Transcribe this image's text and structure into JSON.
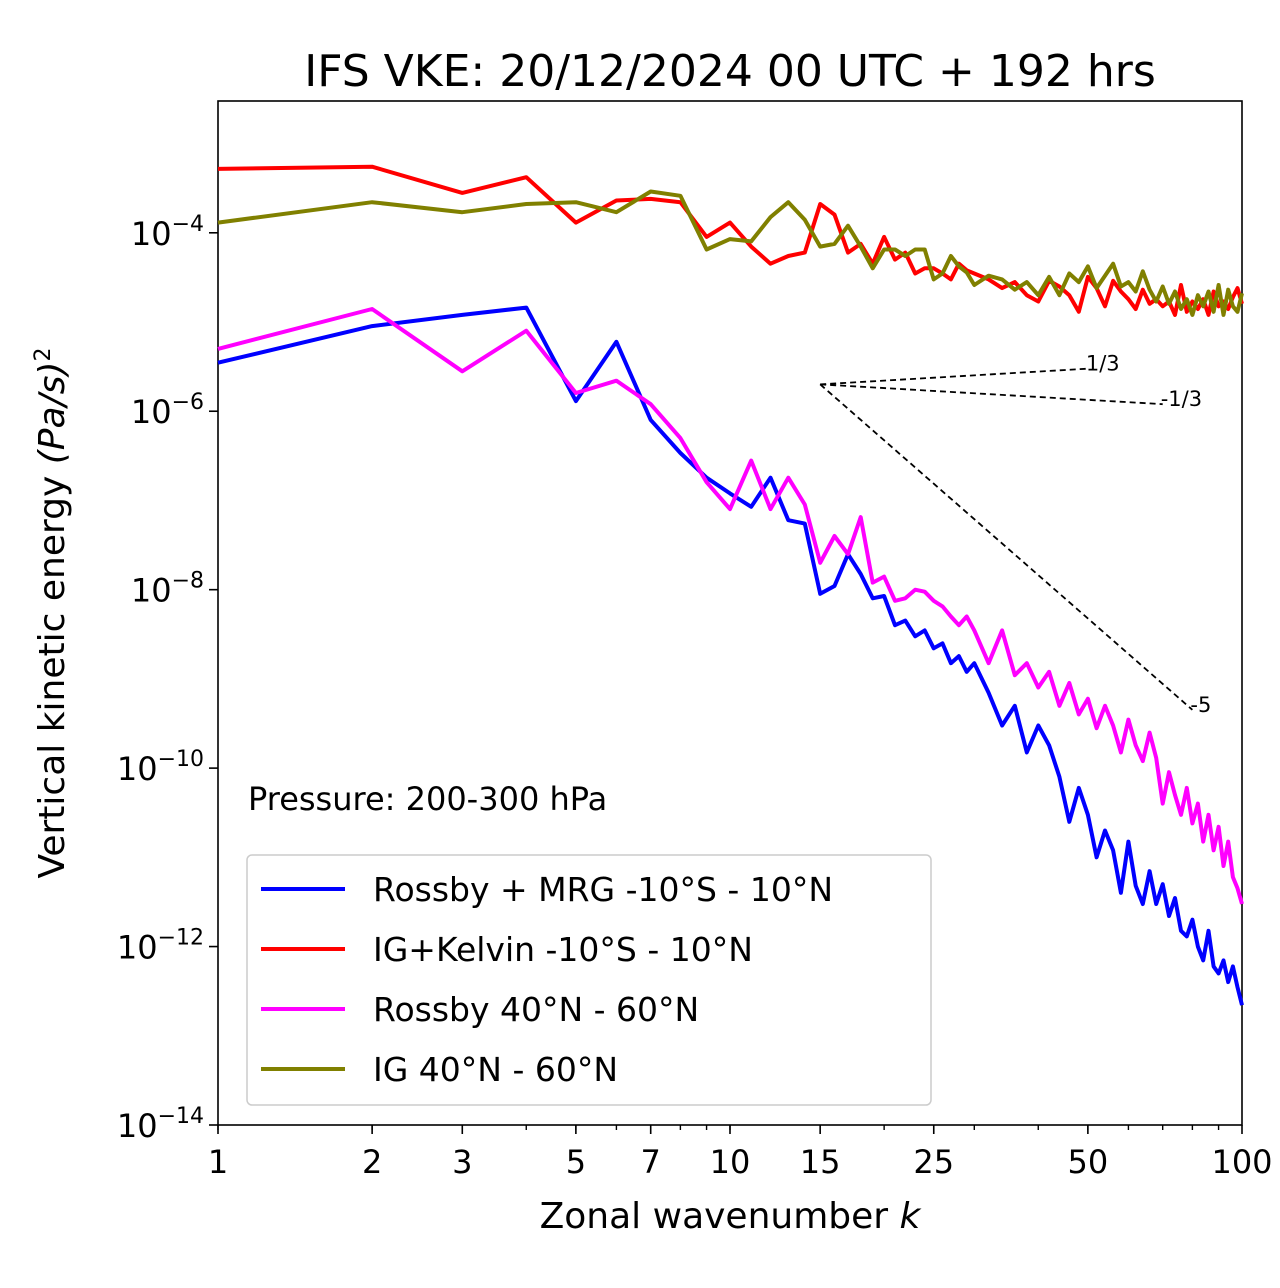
{
  "chart_data": {
    "type": "line",
    "title": "IFS VKE: 20/12/2024 00 UTC + 192 hrs",
    "xlabel": "Zonal wavenumber",
    "xlabel_italic": "k",
    "ylabel": "Vertical kinetic energy",
    "ylabel_unit": "(Pa/s)",
    "ylabel_power": "2",
    "xscale": "log",
    "yscale": "log",
    "xlim": [
      1,
      100
    ],
    "ylim": [
      1e-14,
      0.003
    ],
    "x_ticks": [
      1,
      2,
      3,
      5,
      7,
      10,
      15,
      25,
      50,
      100
    ],
    "x_tick_labels": [
      "1",
      "2",
      "3",
      "5",
      "7",
      "10",
      "15",
      "25",
      "50",
      "100"
    ],
    "y_ticks": [
      -14,
      -12,
      -10,
      -8,
      -6,
      -4
    ],
    "y_tick_base": "10",
    "y_tick_exponents": [
      "−14",
      "−12",
      "−10",
      "−8",
      "−6",
      "−4"
    ],
    "grid": false,
    "legend_position": "lower-left",
    "annotation": "Pressure: 200-300 hPa",
    "series": [
      {
        "name": "Rossby + MRG -10°S - 10°N",
        "color": "#0000ff",
        "x": [
          1,
          2,
          3,
          4,
          5,
          6,
          7,
          8,
          9,
          10,
          11,
          12,
          13,
          14,
          15,
          16,
          17,
          18,
          19,
          20,
          21,
          22,
          23,
          24,
          25,
          26,
          27,
          28,
          29,
          30,
          32,
          34,
          36,
          38,
          40,
          42,
          44,
          46,
          48,
          50,
          52,
          54,
          56,
          58,
          60,
          62,
          64,
          66,
          68,
          70,
          72,
          74,
          76,
          78,
          80,
          82,
          84,
          86,
          88,
          90,
          92,
          94,
          96,
          98,
          100
        ],
        "y": [
          3.5e-06,
          9e-06,
          1.2e-05,
          1.45e-05,
          1.3e-06,
          6e-06,
          8e-07,
          3.4e-07,
          1.8e-07,
          1.2e-07,
          8.5e-08,
          1.8e-07,
          6e-08,
          5.5e-08,
          9e-09,
          1.1e-08,
          2.5e-08,
          1.5e-08,
          8e-09,
          8.5e-09,
          4e-09,
          4.5e-09,
          3e-09,
          3.5e-09,
          2.2e-09,
          2.5e-09,
          1.5e-09,
          1.8e-09,
          1.2e-09,
          1.5e-09,
          7e-10,
          3e-10,
          5e-10,
          1.5e-10,
          3e-10,
          1.8e-10,
          8e-11,
          2.5e-11,
          6e-11,
          3e-11,
          1e-11,
          2e-11,
          1.2e-11,
          4e-12,
          1.5e-11,
          4.8e-12,
          3e-12,
          7e-12,
          3e-12,
          5e-12,
          2.2e-12,
          3.5e-12,
          1.5e-12,
          1.3e-12,
          2e-12,
          1e-12,
          7e-13,
          1.5e-12,
          6e-13,
          5e-13,
          7e-13,
          4e-13,
          6e-13,
          3.5e-13,
          2.2e-13
        ]
      },
      {
        "name": "IG+Kelvin -10°S - 10°N",
        "color": "#ff0000",
        "x": [
          1,
          2,
          3,
          4,
          5,
          6,
          7,
          8,
          9,
          10,
          11,
          12,
          13,
          14,
          15,
          16,
          17,
          18,
          19,
          20,
          21,
          22,
          23,
          24,
          25,
          26,
          27,
          28,
          29,
          30,
          32,
          34,
          36,
          38,
          40,
          42,
          44,
          46,
          48,
          50,
          52,
          54,
          56,
          58,
          60,
          62,
          64,
          66,
          68,
          70,
          72,
          74,
          76,
          78,
          80,
          82,
          84,
          86,
          88,
          90,
          92,
          94,
          96,
          98,
          100
        ],
        "y": [
          0.00052,
          0.00055,
          0.00028,
          0.00042,
          0.00013,
          0.00023,
          0.00024,
          0.00022,
          9e-05,
          0.00013,
          7e-05,
          4.5e-05,
          5.5e-05,
          6e-05,
          0.00021,
          0.00016,
          6e-05,
          7.5e-05,
          4.5e-05,
          9e-05,
          5e-05,
          6e-05,
          3.5e-05,
          4e-05,
          4e-05,
          3.5e-05,
          3e-05,
          4.5e-05,
          3.8e-05,
          3.5e-05,
          3e-05,
          2.4e-05,
          2.8e-05,
          2e-05,
          1.7e-05,
          2.9e-05,
          2.5e-05,
          2e-05,
          1.3e-05,
          3.2e-05,
          2.4e-05,
          1.5e-05,
          2.9e-05,
          2.2e-05,
          1.8e-05,
          1.4e-05,
          2.3e-05,
          1.6e-05,
          1.8e-05,
          1.5e-05,
          1.7e-05,
          1.2e-05,
          2.6e-05,
          1.3e-05,
          1.7e-05,
          1.4e-05,
          1.8e-05,
          1.2e-05,
          2.2e-05,
          1.5e-05,
          1.7e-05,
          1.4e-05,
          1.9e-05,
          2.4e-05,
          1.6e-05
        ]
      },
      {
        "name": "Rossby 40°N - 60°N",
        "color": "#ff00ff",
        "x": [
          1,
          2,
          3,
          4,
          5,
          6,
          7,
          8,
          9,
          10,
          11,
          12,
          13,
          14,
          15,
          16,
          17,
          18,
          19,
          20,
          21,
          22,
          23,
          24,
          25,
          26,
          27,
          28,
          29,
          30,
          32,
          34,
          36,
          38,
          40,
          42,
          44,
          46,
          48,
          50,
          52,
          54,
          56,
          58,
          60,
          62,
          64,
          66,
          68,
          70,
          72,
          74,
          76,
          78,
          80,
          82,
          84,
          86,
          88,
          90,
          92,
          94,
          96,
          98,
          100
        ],
        "y": [
          5e-06,
          1.4e-05,
          2.8e-06,
          8e-06,
          1.6e-06,
          2.2e-06,
          1.2e-06,
          5e-07,
          1.6e-07,
          8e-08,
          2.8e-07,
          8e-08,
          1.8e-07,
          9e-08,
          2e-08,
          4e-08,
          2.5e-08,
          6.5e-08,
          1.2e-08,
          1.4e-08,
          7.5e-09,
          8e-09,
          1e-08,
          9.5e-09,
          7.5e-09,
          6.5e-09,
          5e-09,
          4e-09,
          5e-09,
          3.5e-09,
          1.5e-09,
          3.5e-09,
          1.1e-09,
          1.5e-09,
          8e-10,
          1.2e-09,
          5e-10,
          9e-10,
          4e-10,
          6e-10,
          2.8e-10,
          5e-10,
          3e-10,
          1.5e-10,
          3.5e-10,
          1.8e-10,
          1.2e-10,
          2.5e-10,
          1.3e-10,
          4e-11,
          9e-11,
          5e-11,
          3e-11,
          6e-11,
          2.4e-11,
          4e-11,
          1.5e-11,
          3e-11,
          1.2e-11,
          2.2e-11,
          8e-12,
          1.5e-11,
          6e-12,
          4.5e-12,
          3e-12
        ]
      },
      {
        "name": "IG 40°N - 60°N",
        "color": "#808000",
        "x": [
          1,
          2,
          3,
          4,
          5,
          6,
          7,
          8,
          9,
          10,
          11,
          12,
          13,
          14,
          15,
          16,
          17,
          18,
          19,
          20,
          21,
          22,
          23,
          24,
          25,
          26,
          27,
          28,
          29,
          30,
          32,
          34,
          36,
          38,
          40,
          42,
          44,
          46,
          48,
          50,
          52,
          54,
          56,
          58,
          60,
          62,
          64,
          66,
          68,
          70,
          72,
          74,
          76,
          78,
          80,
          82,
          84,
          86,
          88,
          90,
          92,
          94,
          96,
          98,
          100
        ],
        "y": [
          0.00013,
          0.00022,
          0.00017,
          0.00021,
          0.00022,
          0.00017,
          0.00029,
          0.00026,
          6.5e-05,
          8.5e-05,
          8e-05,
          0.00015,
          0.00022,
          0.00014,
          7e-05,
          7.5e-05,
          0.00012,
          7e-05,
          4e-05,
          6.5e-05,
          6.5e-05,
          5.5e-05,
          6.5e-05,
          6.5e-05,
          3e-05,
          3.5e-05,
          5.5e-05,
          4.2e-05,
          3.6e-05,
          2.6e-05,
          3.3e-05,
          3e-05,
          2.3e-05,
          2.8e-05,
          2e-05,
          3.2e-05,
          2e-05,
          3.5e-05,
          2.8e-05,
          4.2e-05,
          2.4e-05,
          3.3e-05,
          4.5e-05,
          2.5e-05,
          2.8e-05,
          2.2e-05,
          3.7e-05,
          2.3e-05,
          1.7e-05,
          2.5e-05,
          1.6e-05,
          2.2e-05,
          1.4e-05,
          1.8e-05,
          1.2e-05,
          2e-05,
          1.5e-05,
          2.2e-05,
          1.3e-05,
          2.6e-05,
          1.2e-05,
          2.3e-05,
          1.5e-05,
          1.3e-05,
          2.1e-05
        ]
      }
    ],
    "reference_lines": [
      {
        "label": "1/3",
        "x0": 15,
        "y0": 2e-06,
        "x1": 50,
        "y1": 3e-06
      },
      {
        "label": "-1/3",
        "x0": 15,
        "y0": 2e-06,
        "x1": 70,
        "y1": 1.2e-06
      },
      {
        "label": "-5",
        "x0": 15,
        "y0": 2e-06,
        "x1": 80,
        "y1": 4.5e-10
      }
    ]
  }
}
